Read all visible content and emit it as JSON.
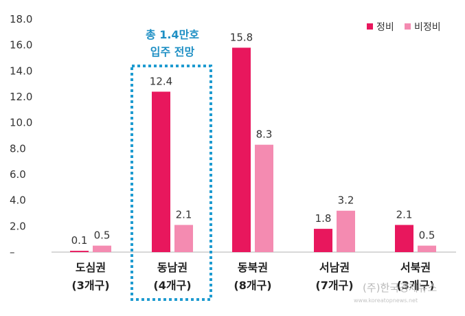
{
  "chart_data": {
    "type": "bar",
    "categories": [
      "도심권",
      "동남권",
      "동북권",
      "서남권",
      "서북권"
    ],
    "category_sublabels": [
      "(3개구)",
      "(4개구)",
      "(8개구)",
      "(7개구)",
      "(3개구)"
    ],
    "series": [
      {
        "name": "정비",
        "values": [
          0.1,
          12.4,
          15.8,
          1.8,
          2.1
        ],
        "color": "#e8175d"
      },
      {
        "name": "비정비",
        "values": [
          0.5,
          2.1,
          8.3,
          3.2,
          0.5
        ],
        "color": "#f48bb1"
      }
    ],
    "data_labels": [
      [
        "0.1",
        "12.4",
        "15.8",
        "1.8",
        "2.1"
      ],
      [
        "0.5",
        "2.1",
        "8.3",
        "3.2",
        "0.5"
      ]
    ],
    "yticks": [
      "–",
      "2.0",
      "4.0",
      "6.0",
      "8.0",
      "10.0",
      "12.0",
      "14.0",
      "16.0",
      "18.0"
    ],
    "ylim": [
      0,
      18
    ],
    "legend_position": "top-right",
    "grid": false,
    "annotation": {
      "line1": "총 1.4만호",
      "line2": "입주 전망",
      "color": "#1e8fc4",
      "highlight_category": "동남권"
    }
  },
  "watermark": {
    "text": "(주)한국경제뉴스",
    "url": "www.koreatopnews.net"
  }
}
